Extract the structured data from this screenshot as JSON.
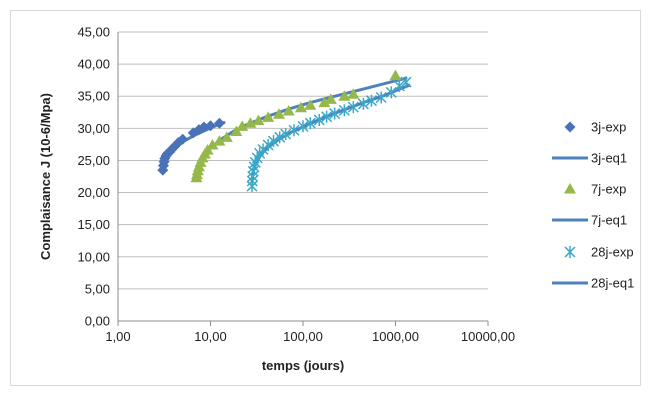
{
  "chart_data": {
    "type": "scatter",
    "title": "",
    "xlabel": "temps (jours)",
    "ylabel": "Complaisance J (10-6/Mpa)",
    "x_scale": "log",
    "xlim": [
      1,
      10000
    ],
    "ylim": [
      0,
      45
    ],
    "x_ticks": [
      "1,00",
      "10,00",
      "100,00",
      "1000,00",
      "10000,00"
    ],
    "y_ticks": [
      "0,00",
      "5,00",
      "10,00",
      "15,00",
      "20,00",
      "25,00",
      "30,00",
      "35,00",
      "40,00",
      "45,00"
    ],
    "grid": "horizontal",
    "legend_position": "right",
    "colors": {
      "s3": "#4a72b8",
      "s7": "#94b84a",
      "s28": "#3aa8c8",
      "fit": "#4f81bd"
    },
    "series": [
      {
        "name": "3j-exp",
        "kind": "scatter",
        "marker": "diamond",
        "color": "#4a72b8",
        "x": [
          3.05,
          3.1,
          3.15,
          3.2,
          3.3,
          3.4,
          3.6,
          3.8,
          4.1,
          4.5,
          5.0,
          6.5,
          7.5,
          8.5,
          10.0,
          12.5
        ],
        "y": [
          23.5,
          24.2,
          24.8,
          25.3,
          25.7,
          26.0,
          26.3,
          26.7,
          27.2,
          27.8,
          28.3,
          29.3,
          29.8,
          30.2,
          30.4,
          30.8
        ]
      },
      {
        "name": "3j-eq1",
        "kind": "line",
        "color": "#4f81bd",
        "x": [
          3.05,
          3.2,
          3.5,
          4.0,
          5.0,
          6.5,
          8.5,
          11.0,
          14.0
        ],
        "y": [
          24.3,
          25.1,
          25.9,
          26.8,
          27.9,
          28.8,
          29.6,
          30.3,
          30.9
        ]
      },
      {
        "name": "7j-exp",
        "kind": "scatter",
        "marker": "triangle",
        "color": "#94b84a",
        "x": [
          7.05,
          7.15,
          7.3,
          7.5,
          7.8,
          8.2,
          8.7,
          9.3,
          10.5,
          12.5,
          15.0,
          19.0,
          22.0,
          27.0,
          33.0,
          42.0,
          55.0,
          70.0,
          95.0,
          120.0,
          170.0,
          200.0,
          280.0,
          350.0,
          1000.0
        ],
        "y": [
          22.3,
          22.8,
          23.4,
          24.0,
          24.7,
          25.4,
          26.0,
          26.6,
          27.4,
          28.0,
          28.6,
          29.5,
          30.3,
          30.8,
          31.2,
          31.7,
          32.2,
          32.7,
          33.2,
          33.6,
          34.0,
          34.5,
          35.0,
          35.3,
          38.2
        ]
      },
      {
        "name": "7j-eq1",
        "kind": "line",
        "color": "#4f81bd",
        "x": [
          7.05,
          7.5,
          8.5,
          10.0,
          13.0,
          18.0,
          25.0,
          40.0,
          70.0,
          120.0,
          250.0,
          500.0,
          1000.0,
          1300.0
        ],
        "y": [
          22.8,
          24.2,
          25.6,
          26.9,
          28.3,
          29.6,
          30.6,
          31.8,
          33.0,
          34.0,
          35.2,
          36.3,
          37.4,
          37.8
        ]
      },
      {
        "name": "28j-exp",
        "kind": "scatter",
        "marker": "star",
        "color": "#3aa8c8",
        "x": [
          28.1,
          28.3,
          28.6,
          29.0,
          29.6,
          30.5,
          32.0,
          34.0,
          37.0,
          42.0,
          48.0,
          56.0,
          65.0,
          80.0,
          100.0,
          120.0,
          150.0,
          180.0,
          220.0,
          280.0,
          350.0,
          450.0,
          550.0,
          700.0,
          900.0,
          1100.0,
          1300.0
        ],
        "y": [
          21.0,
          21.8,
          22.5,
          23.3,
          24.0,
          24.7,
          25.4,
          26.1,
          26.7,
          27.4,
          28.0,
          28.6,
          29.1,
          29.7,
          30.3,
          30.8,
          31.3,
          31.8,
          32.3,
          32.8,
          33.3,
          33.8,
          34.3,
          34.8,
          35.6,
          36.6,
          37.2
        ]
      },
      {
        "name": "28j-eq1",
        "kind": "line",
        "color": "#4f81bd",
        "x": [
          28.1,
          29.0,
          31.0,
          35.0,
          42.0,
          55.0,
          75.0,
          110.0,
          170.0,
          280.0,
          450.0,
          750.0,
          1100.0,
          1400.0
        ],
        "y": [
          21.8,
          23.3,
          24.6,
          25.9,
          27.1,
          28.3,
          29.4,
          30.5,
          31.7,
          32.9,
          34.0,
          35.1,
          36.1,
          36.7
        ]
      }
    ]
  }
}
